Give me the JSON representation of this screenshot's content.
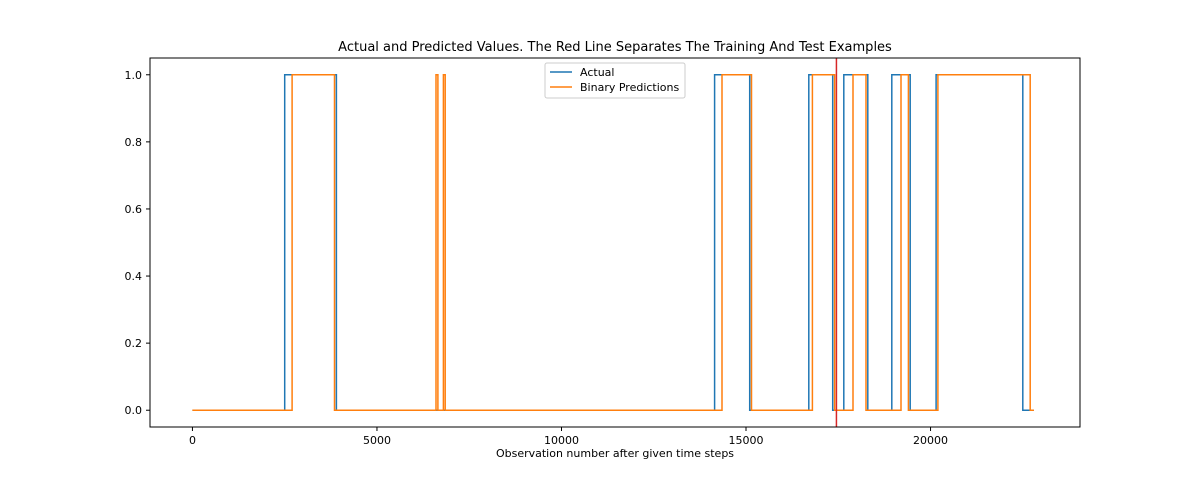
{
  "chart_data": {
    "type": "line",
    "title": "Actual and Predicted Values. The Red Line Separates The Training And Test Examples",
    "xlabel": "Observation number after given time steps",
    "ylabel": "",
    "xlim": [
      -1150,
      24050
    ],
    "ylim": [
      -0.05,
      1.05
    ],
    "x_ticks": [
      0,
      5000,
      10000,
      15000,
      20000
    ],
    "y_ticks": [
      0.0,
      0.2,
      0.4,
      0.6,
      0.8,
      1.0
    ],
    "x_tick_labels": [
      "0",
      "5000",
      "10000",
      "15000",
      "20000"
    ],
    "y_tick_labels": [
      "0.0",
      "0.2",
      "0.4",
      "0.6",
      "0.8",
      "1.0"
    ],
    "grid": false,
    "legend_placement": "upper center",
    "split_line": {
      "x": 17450,
      "color": "#d62728"
    },
    "series": [
      {
        "name": "Actual",
        "color": "#1f77b4",
        "segments": [
          [
            0,
            0
          ],
          [
            2500,
            1
          ],
          [
            3900,
            0
          ],
          [
            14150,
            1
          ],
          [
            15100,
            0
          ],
          [
            16700,
            1
          ],
          [
            17350,
            0
          ],
          [
            17650,
            1
          ],
          [
            18300,
            0
          ],
          [
            18950,
            1
          ],
          [
            19450,
            0
          ],
          [
            20150,
            1
          ],
          [
            22500,
            0
          ],
          [
            22800,
            0
          ]
        ]
      },
      {
        "name": "Binary Predictions",
        "color": "#ff7f0e",
        "segments": [
          [
            0,
            0
          ],
          [
            2700,
            1
          ],
          [
            3850,
            0
          ],
          [
            6600,
            1
          ],
          [
            6650,
            0
          ],
          [
            6800,
            1
          ],
          [
            6850,
            0
          ],
          [
            14350,
            1
          ],
          [
            15150,
            0
          ],
          [
            16800,
            1
          ],
          [
            17400,
            0
          ],
          [
            17900,
            1
          ],
          [
            18250,
            0
          ],
          [
            19200,
            1
          ],
          [
            19400,
            0
          ],
          [
            20200,
            1
          ],
          [
            22700,
            0
          ],
          [
            22800,
            0
          ]
        ]
      }
    ]
  }
}
